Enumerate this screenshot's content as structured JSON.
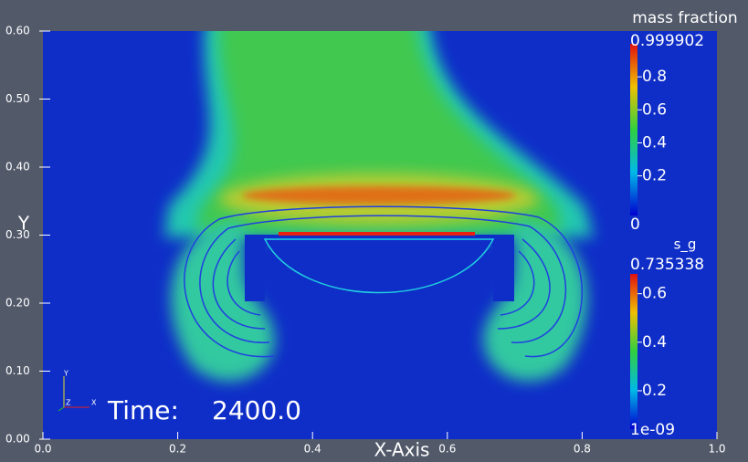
{
  "axes": {
    "x_label": "X-Axis",
    "y_label": "Y",
    "x_ticks": [
      "0.0",
      "0.2",
      "0.4",
      "0.6",
      "0.8",
      "1.0"
    ],
    "y_ticks": [
      "0.00",
      "0.10",
      "0.20",
      "0.30",
      "0.40",
      "0.50",
      "0.60"
    ]
  },
  "legends": [
    {
      "title": "mass fraction",
      "max": "0.999902",
      "ticks": [
        "0.8",
        "0.6",
        "0.4",
        "0.2"
      ],
      "min": "0"
    },
    {
      "title": "s_g",
      "max": "0.735338",
      "ticks": [
        "0.6",
        "0.4",
        "0.2"
      ],
      "min": "1e-09"
    }
  ],
  "time": {
    "label": "Time:",
    "value": "2400.0"
  },
  "triad": {
    "y": "Y",
    "z": "Z",
    "x": "X"
  }
}
